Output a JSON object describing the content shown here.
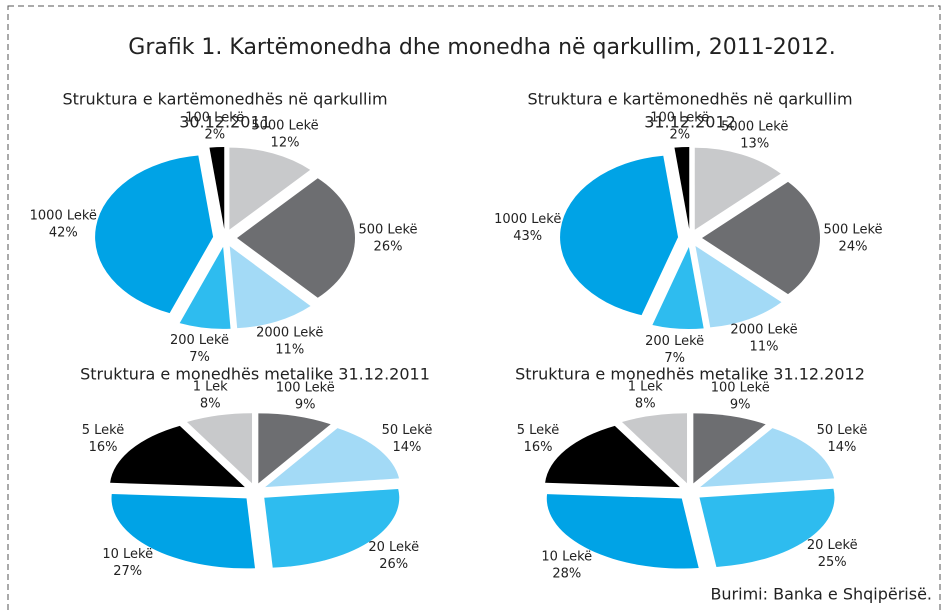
{
  "title": "Grafik 1. Kartëmonedha dhe monedha në qarkullim, 2011-2012.",
  "source": "Burimi: Banka e Shqipërisë.",
  "chart_data": [
    {
      "type": "pie",
      "title": "Struktura e kartëmonedhës në qarkullim",
      "subtitle": "30.12.2011",
      "categories": [
        "5000 Lekë",
        "500 Lekë",
        "2000 Lekë",
        "200 Lekë",
        "1000 Lekë",
        "100 Lekë"
      ],
      "values": [
        12,
        26,
        11,
        7,
        42,
        2
      ],
      "value_labels": [
        "12%",
        "26%",
        "11%",
        "7%",
        "42%",
        "2%"
      ],
      "colors": [
        "#c8c9cb",
        "#6d6e71",
        "#a3daf6",
        "#2ebcef",
        "#00a3e6",
        "#000000"
      ]
    },
    {
      "type": "pie",
      "title": "Struktura e kartëmonedhës në qarkullim",
      "subtitle": "31.12.2012",
      "categories": [
        "5000 Lekë",
        "500 Lekë",
        "2000 Lekë",
        "200 Lekë",
        "1000 Lekë",
        "100 Lekë"
      ],
      "values": [
        13,
        24,
        11,
        7,
        43,
        2
      ],
      "value_labels": [
        "13%",
        "24%",
        "11%",
        "7%",
        "43%",
        "2%"
      ],
      "colors": [
        "#c8c9cb",
        "#6d6e71",
        "#a3daf6",
        "#2ebcef",
        "#00a3e6",
        "#000000"
      ]
    },
    {
      "type": "pie",
      "title": "Struktura e monedhës metalike 31.12.2011",
      "categories": [
        "100 Lekë",
        "50 Lekë",
        "20 Lekë",
        "10 Lekë",
        "5 Lekë",
        "1 Lek"
      ],
      "values": [
        9,
        14,
        26,
        27,
        16,
        8
      ],
      "value_labels": [
        "9%",
        "14%",
        "26%",
        "27%",
        "16%",
        "8%"
      ],
      "colors": [
        "#6d6e71",
        "#a3daf6",
        "#2ebcef",
        "#00a3e6",
        "#000000",
        "#c8c9cb"
      ]
    },
    {
      "type": "pie",
      "title": "Struktura e monedhës metalike 31.12.2012",
      "categories": [
        "100 Lekë",
        "50 Lekë",
        "20 Lekë",
        "10 Lekë",
        "5 Lekë",
        "1 Lek"
      ],
      "values": [
        9,
        14,
        25,
        28,
        16,
        8
      ],
      "value_labels": [
        "9%",
        "14%",
        "25%",
        "28%",
        "16%",
        "8%"
      ],
      "colors": [
        "#6d6e71",
        "#a3daf6",
        "#2ebcef",
        "#00a3e6",
        "#000000",
        "#c8c9cb"
      ]
    }
  ]
}
